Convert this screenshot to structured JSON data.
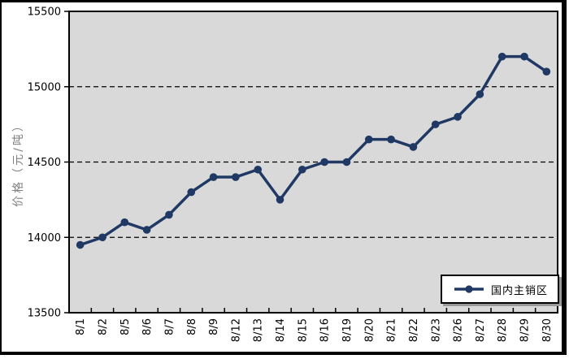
{
  "figure": {
    "background": "#ffffff",
    "plot_background": "#d9d9d9",
    "border_color": "#000000"
  },
  "colors": {
    "series_line": "#1f3864",
    "gridline": "#000000",
    "tick_text": "#000000",
    "axis_title_text": "#808080"
  },
  "legend": {
    "label": "国内主销区"
  },
  "chart_data": {
    "type": "line",
    "title": "",
    "xlabel": "",
    "ylabel": "价格（元/吨）",
    "categories": [
      "8/1",
      "8/2",
      "8/5",
      "8/6",
      "8/7",
      "8/8",
      "8/9",
      "8/12",
      "8/13",
      "8/14",
      "8/15",
      "8/16",
      "8/19",
      "8/20",
      "8/21",
      "8/22",
      "8/23",
      "8/26",
      "8/27",
      "8/28",
      "8/29",
      "8/30"
    ],
    "series": [
      {
        "name": "国内主销区",
        "values": [
          13950,
          14000,
          14100,
          14050,
          14150,
          14300,
          14400,
          14400,
          14450,
          14250,
          14450,
          14500,
          14500,
          14650,
          14650,
          14600,
          14750,
          14800,
          14950,
          15200,
          15200,
          15100
        ]
      }
    ],
    "ylim": [
      13500,
      15500
    ],
    "yticks": [
      13500,
      14000,
      14500,
      15000,
      15500
    ],
    "grid": "horizontal-dashed",
    "legend_position": "bottom-right",
    "line_color": "#1f3864",
    "marker": "circle"
  }
}
